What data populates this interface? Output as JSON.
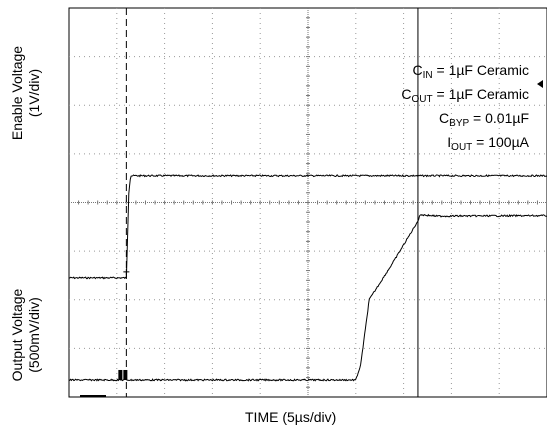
{
  "chart_data": {
    "type": "line",
    "title": "",
    "xlabel": "TIME (5µs/div)",
    "ylabels": {
      "enable": [
        "Enable Voltage",
        "(1V/div)"
      ],
      "output": [
        "Output Voltage",
        "(500mV/div)"
      ]
    },
    "grid": true,
    "divisions": {
      "x": 10,
      "y": 8
    },
    "series": [
      {
        "role": "enable",
        "x_div": [
          0,
          1.2,
          1.25,
          1.29,
          10
        ],
        "y_div": [
          2.45,
          2.45,
          4.2,
          4.55,
          4.55
        ]
      },
      {
        "role": "output",
        "x_div": [
          0,
          6.0,
          6.1,
          6.28,
          6.8,
          7.3,
          7.35,
          7.7,
          10
        ],
        "y_div": [
          0.35,
          0.35,
          0.65,
          2.0,
          2.8,
          3.62,
          3.75,
          3.72,
          3.73
        ]
      }
    ],
    "markers": {
      "trigger_x_div": 1.2,
      "cursor_x_div": 7.3
    },
    "legend": {
      "position": "top-right",
      "items": [
        {
          "main": "C",
          "sub": "IN",
          "rest": " = 1µF Ceramic"
        },
        {
          "main": "C",
          "sub": "OUT",
          "rest": " = 1µF Ceramic"
        },
        {
          "main": "C",
          "sub": "BYP",
          "rest": " = 0.01µF"
        },
        {
          "main": "I",
          "sub": "OUT",
          "rest": " = 100µA"
        }
      ]
    }
  }
}
